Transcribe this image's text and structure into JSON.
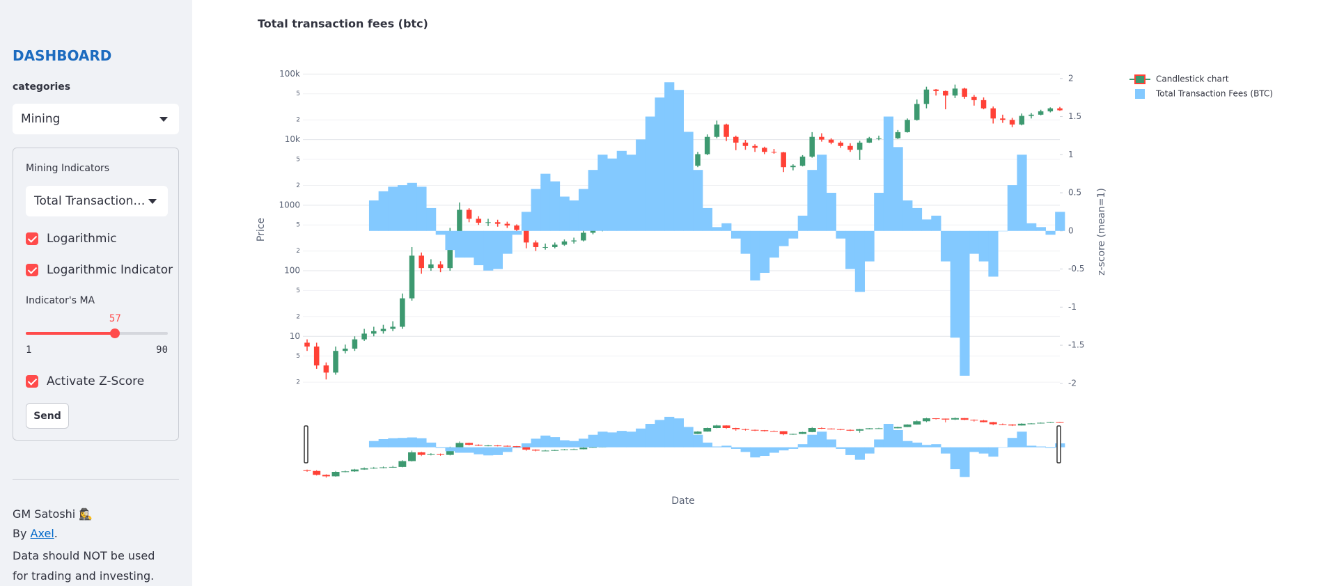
{
  "sidebar": {
    "title": "DASHBOARD",
    "category_label": "categories",
    "category_select": "Mining",
    "group_title": "Mining Indicators",
    "indicator_select": "Total Transaction…",
    "checkboxes": [
      {
        "label": "Logarithmic",
        "checked": true
      },
      {
        "label": "Logarithmic Indicator",
        "checked": true
      },
      {
        "label": "Activate Z-Score",
        "checked": true
      }
    ],
    "slider": {
      "label": "Indicator's MA",
      "value": 57,
      "min": 1,
      "max": 90
    },
    "button": "Send",
    "footer": {
      "greeting": "GM Satoshi 🕵️‍♀️",
      "by": "By",
      "author": "Axel",
      "by_end": ".",
      "disclaimer": "Data should NOT be used for trading and investing."
    }
  },
  "chart_data": {
    "type": "candlestick",
    "title": "Total transaction fees (btc)",
    "xlabel": "Date",
    "ylabel": "Price",
    "y2label": "z-score (mean=1)",
    "log_y": true,
    "grid": true,
    "legend": "outside-right",
    "rangeslider": true,
    "ylim": [
      1.82,
      106000
    ],
    "yticks": [
      2,
      5,
      10,
      {
        "value": 20,
        "label": "2"
      },
      {
        "value": 50,
        "label": "5"
      },
      100,
      {
        "value": 200,
        "label": "2"
      },
      {
        "value": 500,
        "label": "5"
      },
      1000,
      {
        "value": 2000,
        "label": "2"
      },
      {
        "value": 5000,
        "label": "5"
      },
      {
        "value": 10000,
        "label": "10k"
      },
      {
        "value": 20000,
        "label": "2"
      },
      {
        "value": 50000,
        "label": "5"
      },
      {
        "value": 100000,
        "label": "100k"
      }
    ],
    "y2lim": [
      -2.02,
      2.08
    ],
    "y2ticks": [
      -2,
      -1.5,
      -1,
      -0.5,
      0,
      0.5,
      1,
      1.5,
      2
    ],
    "series": [
      {
        "name": "Candlestick chart",
        "type": "candlestick",
        "increasing_color": "#3D9970",
        "decreasing_color": "#FF4136",
        "open": [
          8,
          7,
          3.6,
          2.8,
          6,
          6.5,
          9,
          11,
          12,
          13,
          14,
          38,
          170,
          110,
          125,
          110,
          400,
          850,
          620,
          540,
          550,
          520,
          490,
          420,
          270,
          230,
          230,
          250,
          280,
          290,
          380,
          420,
          450,
          580,
          650,
          750,
          900,
          1000,
          1200,
          1800,
          2500,
          4000,
          6000,
          11000,
          17000,
          11000,
          9000,
          8000,
          7500,
          6500,
          6400,
          3800,
          4000,
          5500,
          11000,
          10000,
          9000,
          8000,
          7000,
          9000,
          10500,
          10500,
          10500,
          13000,
          20000,
          35000,
          58000,
          55000,
          47000,
          60000,
          45000,
          40000,
          30000,
          21000,
          20000,
          17000,
          23000,
          24000,
          27000,
          30000
        ],
        "high": [
          9,
          8,
          4,
          7,
          7.5,
          10,
          13,
          14,
          15,
          17,
          45,
          230,
          190,
          150,
          140,
          450,
          1100,
          900,
          680,
          620,
          600,
          560,
          510,
          440,
          290,
          260,
          270,
          300,
          320,
          420,
          460,
          500,
          650,
          750,
          800,
          1000,
          1150,
          1300,
          2000,
          2900,
          4500,
          6500,
          12000,
          19500,
          17500,
          11500,
          9900,
          8500,
          7800,
          7200,
          6500,
          4200,
          5800,
          13000,
          12500,
          10500,
          9500,
          8800,
          9600,
          11000,
          11500,
          12000,
          14000,
          21000,
          41000,
          64000,
          59000,
          56000,
          69000,
          62000,
          48000,
          44000,
          32000,
          24000,
          21500,
          25000,
          25500,
          28500,
          31000,
          31500
        ],
        "low": [
          6,
          3.2,
          2.2,
          2.6,
          5.5,
          6,
          8.5,
          10,
          11,
          12,
          13,
          35,
          90,
          100,
          95,
          100,
          380,
          550,
          500,
          480,
          470,
          450,
          380,
          220,
          200,
          210,
          220,
          240,
          260,
          280,
          360,
          400,
          430,
          550,
          620,
          700,
          850,
          950,
          1150,
          1700,
          2400,
          3800,
          5800,
          10500,
          9500,
          6900,
          7000,
          6500,
          6000,
          6100,
          3200,
          3400,
          3900,
          5300,
          9300,
          8500,
          7500,
          6500,
          4900,
          8900,
          9800,
          10000,
          10200,
          12800,
          19500,
          30000,
          47000,
          29000,
          43000,
          42000,
          33000,
          29000,
          17600,
          18000,
          15500,
          16500,
          21000,
          23500,
          26000,
          27500
        ],
        "close": [
          7,
          3.6,
          2.8,
          6,
          6.5,
          9,
          11,
          12,
          13,
          14,
          38,
          170,
          110,
          125,
          110,
          400,
          850,
          620,
          540,
          550,
          520,
          490,
          420,
          270,
          230,
          230,
          250,
          280,
          290,
          380,
          420,
          450,
          580,
          650,
          750,
          900,
          1000,
          1200,
          1800,
          2500,
          4000,
          6000,
          11000,
          17000,
          11000,
          9000,
          8000,
          7500,
          6500,
          6400,
          3800,
          4000,
          5500,
          11000,
          10000,
          9000,
          8000,
          7000,
          9000,
          10500,
          10500,
          10500,
          13000,
          20000,
          35000,
          58000,
          55000,
          47000,
          60000,
          45000,
          40000,
          30000,
          21000,
          20000,
          17000,
          23000,
          24000,
          27000,
          30000,
          28000
        ]
      },
      {
        "name": "Total Transaction Fees (BTC)",
        "type": "bar",
        "axis": "y2",
        "color": "#83c9ff",
        "values": [
          null,
          null,
          null,
          null,
          null,
          null,
          null,
          0.4,
          0.52,
          0.58,
          0.6,
          0.63,
          0.58,
          0.3,
          -0.05,
          -0.25,
          -0.35,
          -0.35,
          -0.45,
          -0.52,
          -0.5,
          -0.3,
          -0.05,
          0.25,
          0.55,
          0.75,
          0.65,
          0.45,
          0.4,
          0.55,
          0.8,
          1.0,
          0.95,
          1.05,
          1.0,
          1.2,
          1.5,
          1.75,
          1.95,
          1.85,
          1.3,
          0.8,
          0.3,
          0.05,
          0.1,
          -0.1,
          -0.3,
          -0.65,
          -0.55,
          -0.35,
          -0.2,
          -0.1,
          0.2,
          0.8,
          1.0,
          0.5,
          -0.1,
          -0.5,
          -0.8,
          -0.4,
          0.5,
          1.5,
          1.1,
          0.4,
          0.3,
          0.15,
          0.2,
          -0.4,
          -1.4,
          -1.9,
          -0.3,
          -0.4,
          -0.6,
          0,
          0.6,
          1.0,
          0.1,
          0.05,
          -0.05,
          0.25
        ]
      }
    ]
  }
}
